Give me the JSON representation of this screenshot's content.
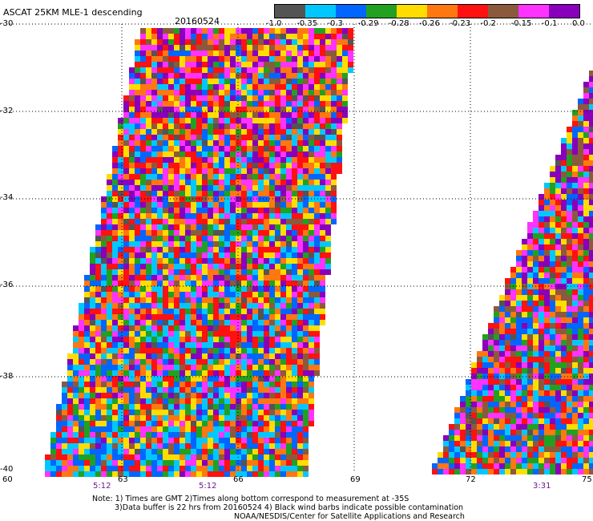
{
  "header": {
    "title": "ASCAT 25KM MLE-1 descending",
    "date": "20160524"
  },
  "colorbar": {
    "colors": [
      "#545454",
      "#00c8ff",
      "#0066ff",
      "#22a022",
      "#ffdd00",
      "#ff7711",
      "#ff1111",
      "#8b5a3c",
      "#ff33ff",
      "#8800bb"
    ],
    "labels": [
      "-1.0",
      "-0.35",
      "-0.3",
      "-0.29",
      "-0.28",
      "-0.26",
      "-0.23",
      "-0.2",
      "-0.15",
      "-0.1",
      "0.0"
    ]
  },
  "axes": {
    "y_labels": [
      "-30",
      "-32",
      "-34",
      "-36",
      "-38",
      "-40"
    ],
    "x_labels": [
      "60",
      "63",
      "66",
      "69",
      "72",
      "75"
    ],
    "time_labels": [
      "5:12",
      "5:12",
      "3:31"
    ]
  },
  "notes": [
    "Note: 1) Times are GMT 2)Times along bottom correspond to measurement at -35S",
    "3)Data buffer is 22 hrs from 20160524 4) Black wind barbs indicate possible contamination",
    "NOAA/NESDIS/Center for Satellite Applications and Research"
  ]
}
